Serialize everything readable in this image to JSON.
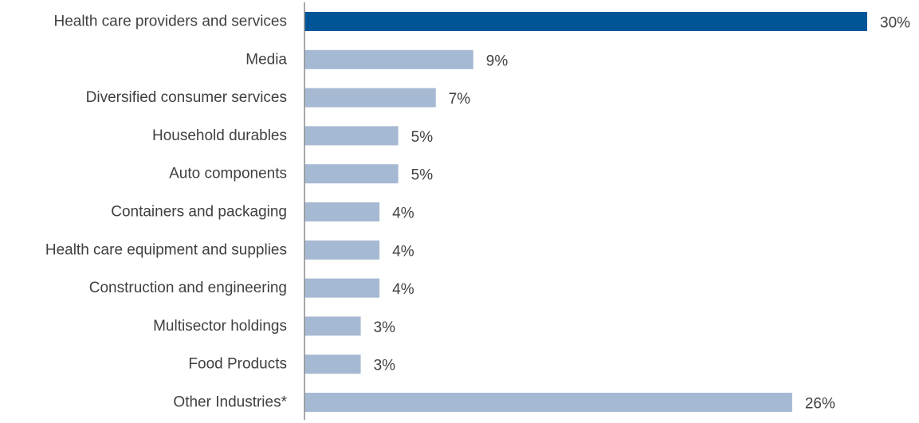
{
  "chart_data": {
    "type": "bar",
    "orientation": "horizontal",
    "categories": [
      "Health care providers and services",
      "Media",
      "Diversified consumer services",
      "Household durables",
      "Auto components",
      "Containers and packaging",
      "Health care equipment and supplies",
      "Construction and engineering",
      "Multisector holdings",
      "Food Products",
      "Other Industries*"
    ],
    "values": [
      30,
      9,
      7,
      5,
      5,
      4,
      4,
      4,
      3,
      3,
      26
    ],
    "data_labels": [
      "30%",
      "9%",
      "7%",
      "5%",
      "5%",
      "4%",
      "4%",
      "4%",
      "3%",
      "3%",
      "26%"
    ],
    "title": "",
    "xlabel": "",
    "ylabel": "",
    "xlim": [
      0,
      30
    ],
    "grid": false,
    "legend": "none",
    "colors": {
      "highlight": "#005596",
      "default": "#a6b9d3",
      "axis": "#8c8c8c",
      "text": "#404040"
    },
    "highlight_index": 0
  }
}
